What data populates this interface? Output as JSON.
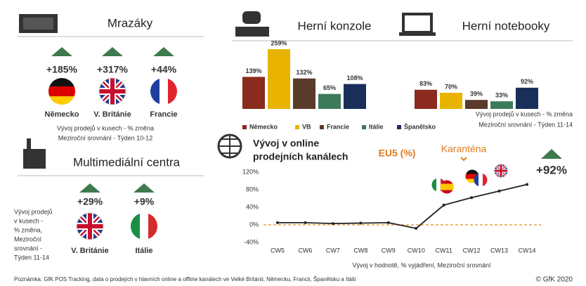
{
  "freezers": {
    "title": "Mrazáky",
    "items": [
      {
        "change": "+185%",
        "country": "Německo"
      },
      {
        "change": "+317%",
        "country": "V. Británie"
      },
      {
        "change": "+44%",
        "country": "Francie"
      }
    ],
    "note": [
      "Vývoj prodejů v kusech - % změna",
      "Meziroční srovnání - Týden 10-12"
    ]
  },
  "multimedia": {
    "title": "Multimediální centra",
    "items": [
      {
        "change": "+29%",
        "country": "V. Británie"
      },
      {
        "change": "+9%",
        "country": "Itálie"
      }
    ],
    "note": [
      "Vývoj prodejů",
      "v kusech -",
      "% změna,",
      "Meziroční",
      "srovnání -",
      "Týden 11-14"
    ]
  },
  "chart_data": [
    {
      "type": "bar",
      "categories": [
        "Herní konzole",
        "Herní notebooky"
      ],
      "series": [
        {
          "name": "Německo",
          "color": "#8b2a1e",
          "values": [
            139,
            83
          ],
          "value_labels": [
            "139%",
            "83%"
          ]
        },
        {
          "name": "VB",
          "color": "#e8b400",
          "values": [
            259,
            70
          ],
          "value_labels": [
            "259%",
            "70%"
          ]
        },
        {
          "name": "Francie",
          "color": "#5a3a2a",
          "values": [
            132,
            39
          ],
          "value_labels": [
            "132%",
            "39%"
          ]
        },
        {
          "name": "Itálie",
          "color": "#3d7a5a",
          "values": [
            65,
            33
          ],
          "value_labels": [
            "65%",
            "33%"
          ]
        },
        {
          "name": "Španělsko",
          "color": "#1a2e5a",
          "values": [
            108,
            92
          ],
          "value_labels": [
            "108%",
            "92%"
          ]
        }
      ],
      "note": [
        "Vývoj prodejů v kusech - % změna",
        "Meziroční srovnání - Týden 11-14"
      ]
    },
    {
      "type": "line",
      "title": [
        "Vývoj v online",
        "prodejních kanálech"
      ],
      "subtitle": "EU5 (%)",
      "annotations": [
        "Karanténa",
        "+92%"
      ],
      "categories": [
        "CW5",
        "CW6",
        "CW7",
        "CW8",
        "CW9",
        "CW10",
        "CW11",
        "CW12",
        "CW13",
        "CW14"
      ],
      "values": [
        5,
        5,
        3,
        4,
        5,
        -8,
        45,
        62,
        77,
        92
      ],
      "color": "#222222",
      "ylim": [
        -40,
        120
      ],
      "yticks": [
        {
          "value": 120,
          "label": "120%"
        },
        {
          "value": 80,
          "label": "80%"
        },
        {
          "value": 40,
          "label": "40%"
        },
        {
          "value": 0,
          "label": "0%"
        },
        {
          "value": -40,
          "label": "-40%"
        }
      ],
      "xlabel": "Vývoj v hodnotě, % vyjádření, Meziroční srovnání"
    }
  ],
  "footer": {
    "note": "Poznámka: GfK POS Tracking, data o prodejích v hlavních online a offline kanálech ve Velké Británii, Německu, Francii, Španělsku a Itálii",
    "copyright": "© GfK 2020"
  }
}
